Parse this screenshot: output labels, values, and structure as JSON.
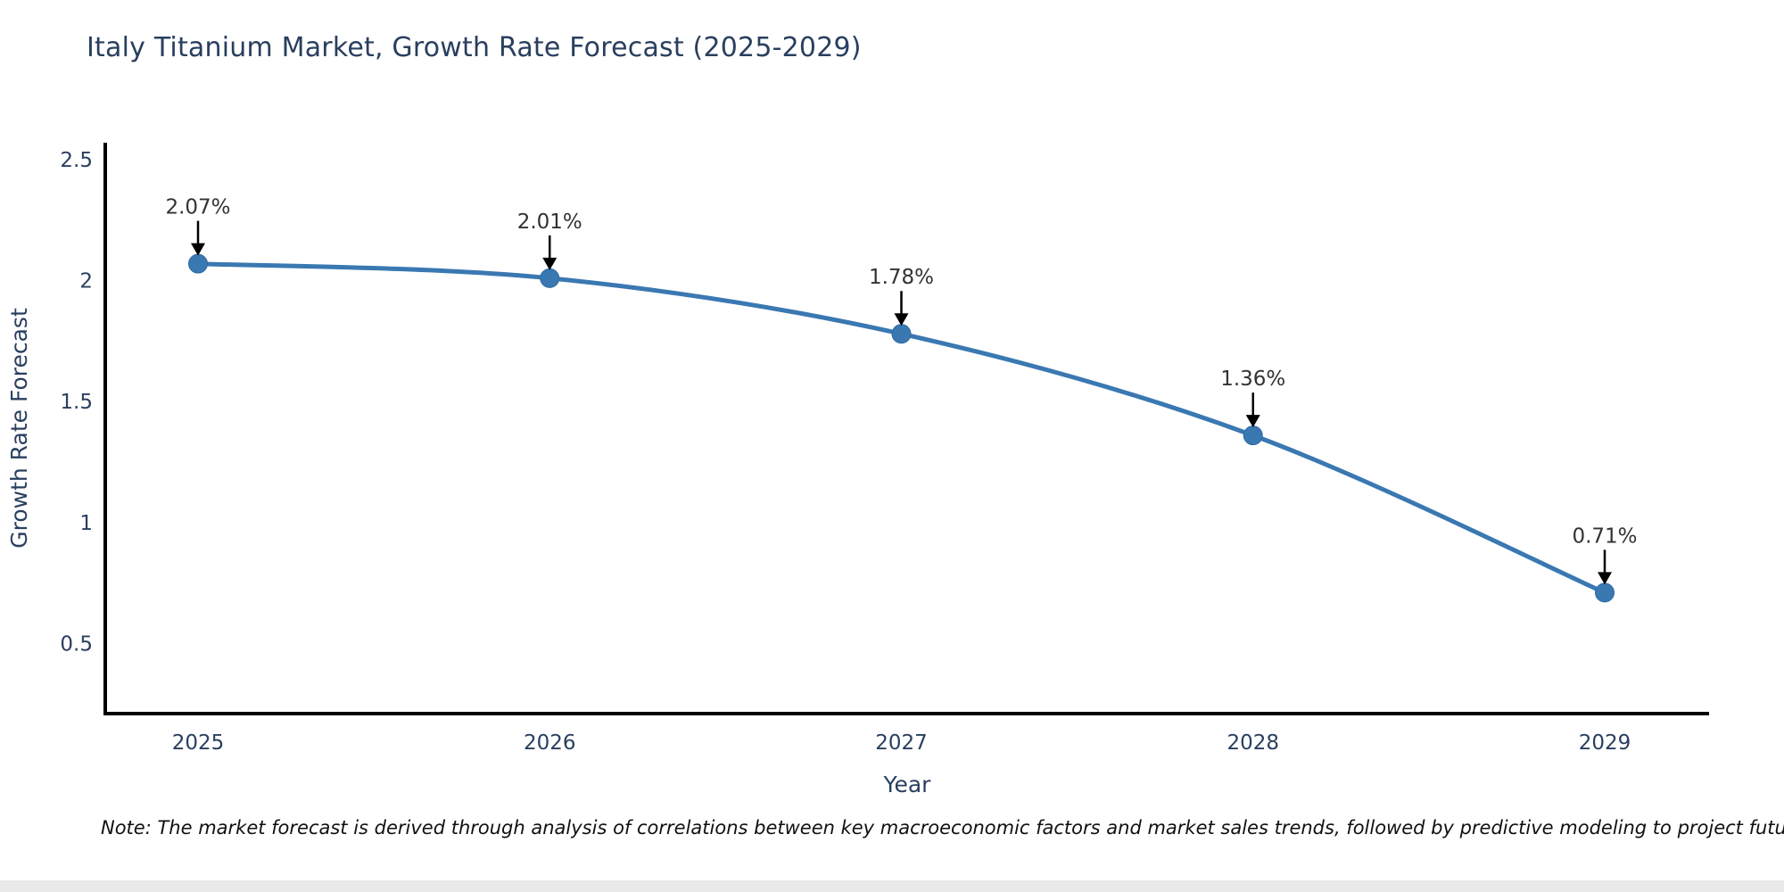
{
  "page": {
    "background": "#ffffff",
    "footer_bar_color": "#e9e9e9"
  },
  "chart_data": {
    "type": "line",
    "title": "Italy Titanium Market, Growth Rate Forecast (2025-2029)",
    "xlabel": "Year",
    "ylabel": "Growth Rate Forecast",
    "categories": [
      "2025",
      "2026",
      "2027",
      "2028",
      "2029"
    ],
    "values": [
      2.07,
      2.01,
      1.78,
      1.36,
      0.71
    ],
    "point_labels": [
      "2.07%",
      "2.01%",
      "1.78%",
      "1.36%",
      "0.71%"
    ],
    "yticks": [
      0.5,
      1,
      1.5,
      2,
      2.5
    ],
    "ytick_labels": [
      "0.5",
      "1",
      "1.5",
      "2",
      "2.5"
    ],
    "ylim": [
      0.21,
      2.57
    ],
    "grid": false,
    "legend_position": "none",
    "line_color": "#3a78b2",
    "marker_color": "#3a78b2",
    "marker_edge_color": "#2f6ba3",
    "axis_color": "#000000",
    "tick_text_color": "#2a3f5f",
    "title_color": "#2a3f5f",
    "annotation_color": "#333333",
    "annotation_arrow_color": "#000000"
  },
  "note": {
    "text": "Note: The market forecast is derived through analysis of correlations between key macroeconomic factors and market sales trends, followed by predictive modeling to project future sales"
  }
}
